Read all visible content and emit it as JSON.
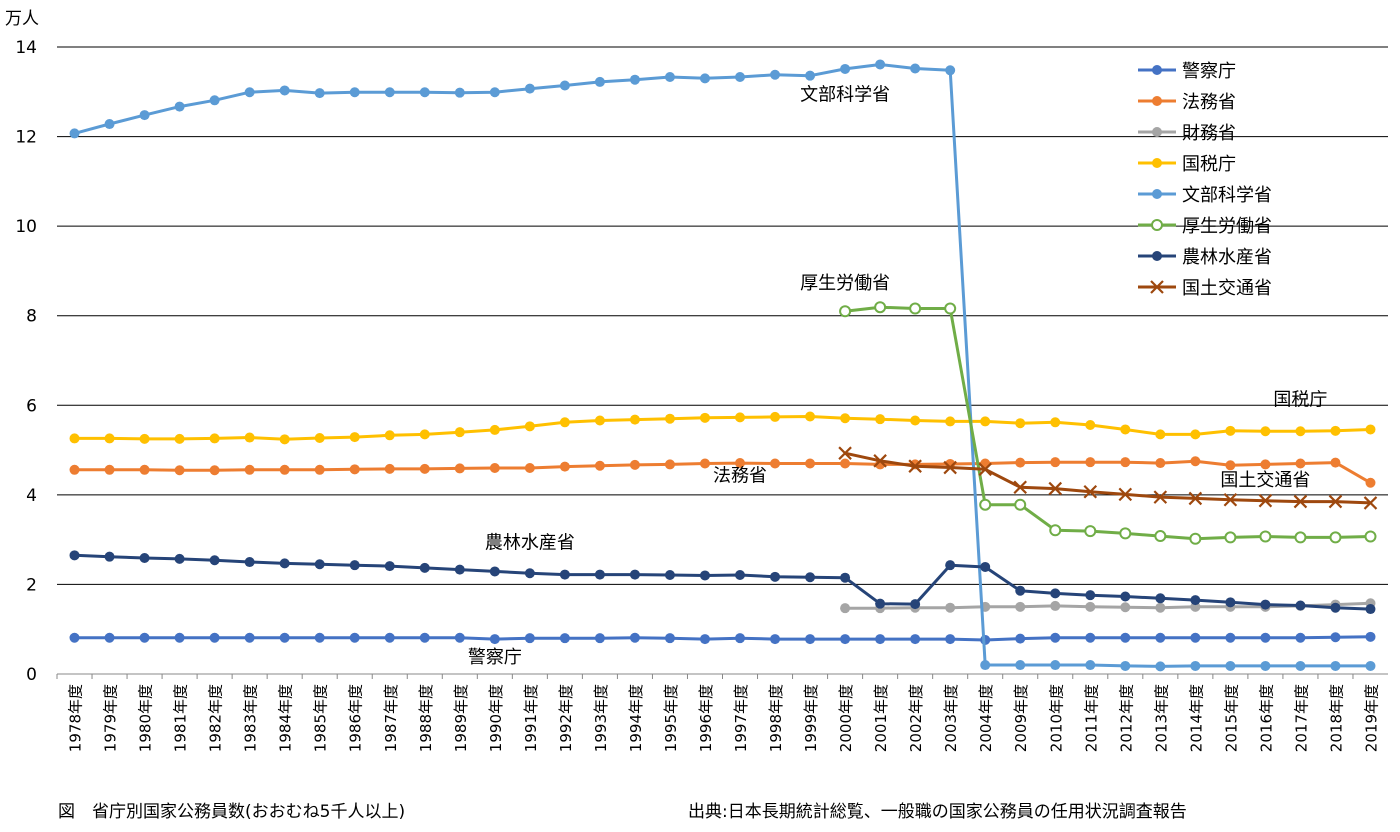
{
  "caption_left": "図　省庁別国家公務員数(おおむね5千人以上)",
  "caption_right": "出典:日本長期統計総覧、一般職の国家公務員の任用状況調査報告",
  "chart_data": {
    "type": "line",
    "ylabel": "万人",
    "ylim": [
      0,
      14
    ],
    "yticks": [
      0,
      2,
      4,
      6,
      8,
      10,
      12,
      14
    ],
    "grid": true,
    "legend_position": "top-right",
    "categories": [
      "1978年度",
      "1979年度",
      "1980年度",
      "1981年度",
      "1982年度",
      "1983年度",
      "1984年度",
      "1985年度",
      "1986年度",
      "1987年度",
      "1988年度",
      "1989年度",
      "1990年度",
      "1991年度",
      "1992年度",
      "1993年度",
      "1994年度",
      "1995年度",
      "1996年度",
      "1997年度",
      "1998年度",
      "1999年度",
      "2000年度",
      "2001年度",
      "2002年度",
      "2003年度",
      "2004年度",
      "2009年度",
      "2010年度",
      "2011年度",
      "2012年度",
      "2013年度",
      "2014年度",
      "2015年度",
      "2016年度",
      "2017年度",
      "2018年度",
      "2019年度"
    ],
    "series": [
      {
        "name": "警察庁",
        "color": "#4472c4",
        "marker": "dot",
        "values": [
          0.81,
          0.81,
          0.81,
          0.81,
          0.81,
          0.81,
          0.81,
          0.81,
          0.81,
          0.81,
          0.81,
          0.81,
          0.78,
          0.8,
          0.8,
          0.8,
          0.81,
          0.8,
          0.78,
          0.8,
          0.78,
          0.78,
          0.78,
          0.78,
          0.78,
          0.78,
          0.76,
          0.79,
          0.81,
          0.81,
          0.81,
          0.81,
          0.81,
          0.81,
          0.81,
          0.81,
          0.82,
          0.83
        ]
      },
      {
        "name": "法務省",
        "color": "#ed7d31",
        "marker": "dot",
        "values": [
          4.56,
          4.56,
          4.56,
          4.55,
          4.55,
          4.56,
          4.56,
          4.56,
          4.57,
          4.58,
          4.58,
          4.59,
          4.6,
          4.6,
          4.63,
          4.65,
          4.67,
          4.68,
          4.7,
          4.71,
          4.7,
          4.7,
          4.7,
          4.68,
          4.68,
          4.69,
          4.7,
          4.72,
          4.73,
          4.73,
          4.73,
          4.71,
          4.75,
          4.66,
          4.68,
          4.7,
          4.72,
          4.27
        ]
      },
      {
        "name": "財務省",
        "color": "#a5a5a5",
        "marker": "dot",
        "values": [
          null,
          null,
          null,
          null,
          null,
          null,
          null,
          null,
          null,
          null,
          null,
          null,
          null,
          null,
          null,
          null,
          null,
          null,
          null,
          null,
          null,
          null,
          1.47,
          1.47,
          1.48,
          1.48,
          1.5,
          1.5,
          1.52,
          1.5,
          1.49,
          1.48,
          1.5,
          1.5,
          1.5,
          1.52,
          1.55,
          1.58
        ]
      },
      {
        "name": "国税庁",
        "color": "#ffc000",
        "marker": "dot",
        "values": [
          5.26,
          5.26,
          5.25,
          5.25,
          5.26,
          5.28,
          5.24,
          5.27,
          5.29,
          5.33,
          5.35,
          5.4,
          5.45,
          5.53,
          5.62,
          5.66,
          5.68,
          5.7,
          5.72,
          5.73,
          5.74,
          5.75,
          5.71,
          5.69,
          5.66,
          5.64,
          5.64,
          5.6,
          5.62,
          5.56,
          5.46,
          5.35,
          5.35,
          5.43,
          5.42,
          5.42,
          5.43,
          5.46
        ]
      },
      {
        "name": "文部科学省",
        "color": "#5b9bd5",
        "marker": "dot",
        "values": [
          12.07,
          12.28,
          12.48,
          12.67,
          12.81,
          12.99,
          13.03,
          12.97,
          12.99,
          12.99,
          12.99,
          12.98,
          12.99,
          13.07,
          13.14,
          13.22,
          13.27,
          13.33,
          13.3,
          13.33,
          13.38,
          13.36,
          13.51,
          13.61,
          13.52,
          13.48,
          0.2,
          0.2,
          0.2,
          0.2,
          0.18,
          0.17,
          0.18,
          0.18,
          0.18,
          0.18,
          0.18,
          0.18
        ]
      },
      {
        "name": "厚生労働省",
        "color": "#70ad47",
        "marker": "ring",
        "values": [
          null,
          null,
          null,
          null,
          null,
          null,
          null,
          null,
          null,
          null,
          null,
          null,
          null,
          null,
          null,
          null,
          null,
          null,
          null,
          null,
          null,
          null,
          8.1,
          8.19,
          8.16,
          8.16,
          3.78,
          3.78,
          3.21,
          3.19,
          3.14,
          3.08,
          3.02,
          3.05,
          3.07,
          3.05,
          3.05,
          3.07
        ]
      },
      {
        "name": "農林水産省",
        "color": "#264478",
        "marker": "dot",
        "values": [
          2.65,
          2.62,
          2.59,
          2.57,
          2.54,
          2.5,
          2.47,
          2.45,
          2.43,
          2.41,
          2.37,
          2.33,
          2.29,
          2.25,
          2.22,
          2.22,
          2.22,
          2.21,
          2.2,
          2.21,
          2.17,
          2.16,
          2.15,
          1.57,
          1.56,
          2.43,
          2.39,
          1.86,
          1.8,
          1.76,
          1.73,
          1.69,
          1.65,
          1.6,
          1.55,
          1.53,
          1.48,
          1.45
        ]
      },
      {
        "name": "国土交通省",
        "color": "#9e480e",
        "marker": "cross",
        "values": [
          null,
          null,
          null,
          null,
          null,
          null,
          null,
          null,
          null,
          null,
          null,
          null,
          null,
          null,
          null,
          null,
          null,
          null,
          null,
          null,
          null,
          null,
          4.93,
          4.76,
          4.64,
          4.61,
          4.57,
          4.17,
          4.14,
          4.07,
          4.01,
          3.95,
          3.92,
          3.89,
          3.87,
          3.85,
          3.85,
          3.82
        ]
      }
    ],
    "annotations": [
      {
        "text": "文部科学省",
        "category": "2000年度",
        "y": 12.8
      },
      {
        "text": "厚生労働省",
        "category": "2000年度",
        "y": 8.6
      },
      {
        "text": "国税庁",
        "category": "2017年度",
        "y": 6.0
      },
      {
        "text": "国土交通省",
        "category": "2016年度",
        "y": 4.2
      },
      {
        "text": "法務省",
        "category": "1997年度",
        "y": 4.3
      },
      {
        "text": "農林水産省",
        "category": "1991年度",
        "y": 2.8
      },
      {
        "text": "警察庁",
        "category": "1990年度",
        "y": 0.25
      }
    ]
  }
}
